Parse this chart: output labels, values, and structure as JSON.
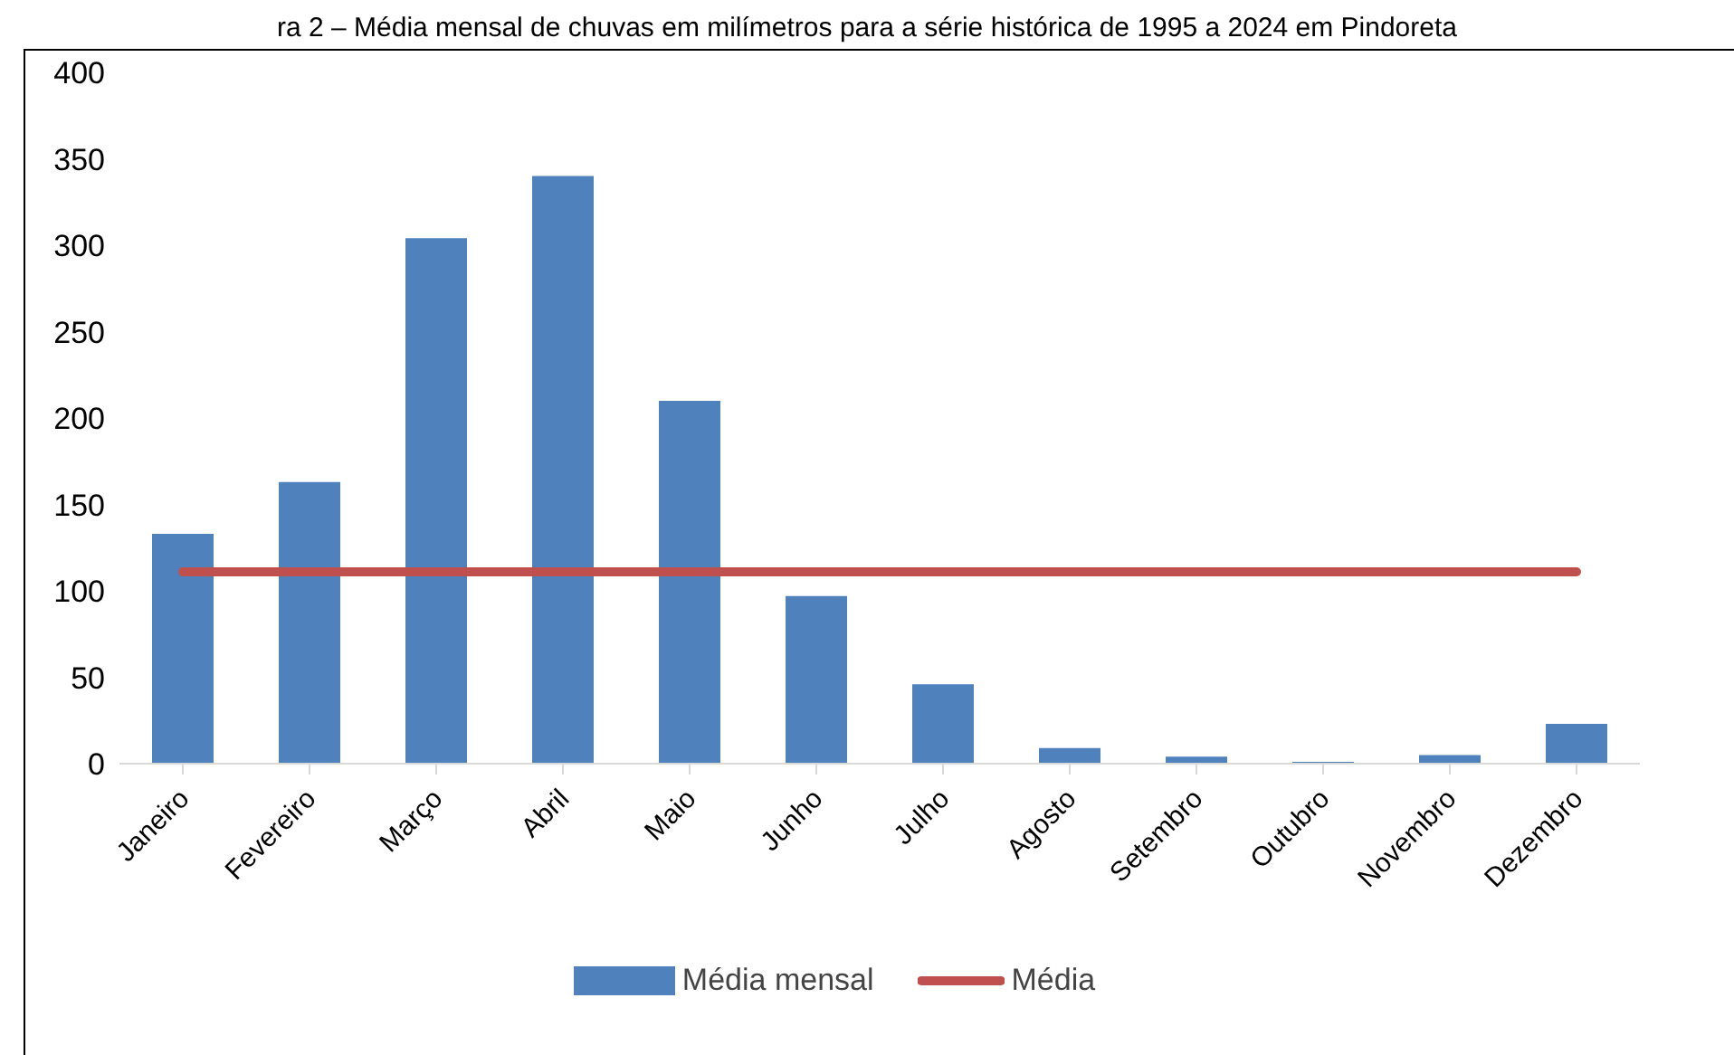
{
  "chart_data": {
    "type": "bar",
    "title": "ra 2 – Média mensal de chuvas em milímetros para a série histórica de 1995 a 2024 em Pindoreta",
    "categories": [
      "Janeiro",
      "Fevereiro",
      "Março",
      "Abril",
      "Maio",
      "Junho",
      "Julho",
      "Agosto",
      "Setembro",
      "Outubro",
      "Novembro",
      "Dezembro"
    ],
    "series": [
      {
        "name": "Média mensal",
        "color": "#4f81bd",
        "values": [
          133,
          163,
          304,
          340,
          210,
          97,
          46,
          9,
          4,
          1,
          5,
          23
        ]
      },
      {
        "name": "Média",
        "type": "line",
        "color": "#c0504d",
        "values": [
          111,
          111,
          111,
          111,
          111,
          111,
          111,
          111,
          111,
          111,
          111,
          111
        ]
      }
    ],
    "ylim": [
      0,
      400
    ],
    "yticks": [
      0,
      50,
      100,
      150,
      200,
      250,
      300,
      350,
      400
    ],
    "grid": false,
    "legend": "bottom",
    "marker": "none"
  }
}
